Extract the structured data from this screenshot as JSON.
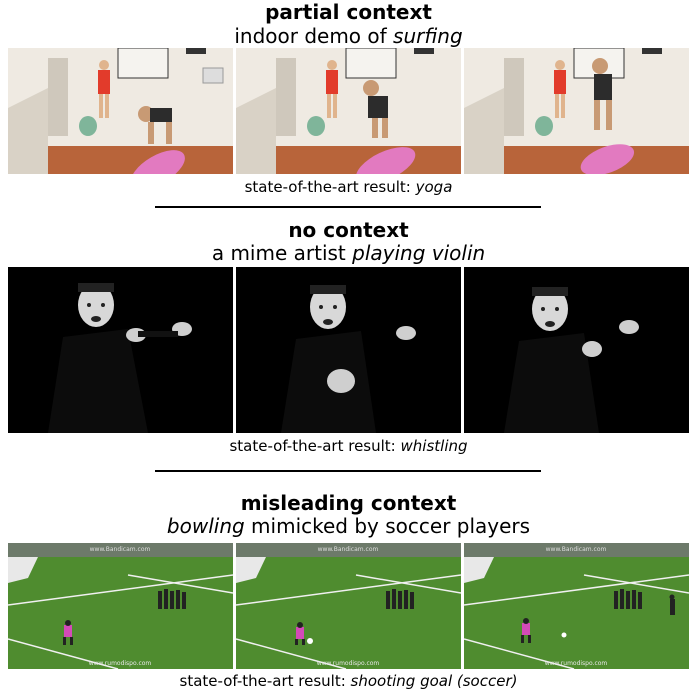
{
  "sections": [
    {
      "title": "partial context",
      "subtitle_plain": "indoor demo of ",
      "subtitle_italic": "surfing",
      "caption_plain": "state-of-the-art result: ",
      "caption_italic": "yoga"
    },
    {
      "title": "no context",
      "subtitle_plain": "a mime artist ",
      "subtitle_italic": "playing violin",
      "caption_plain": "state-of-the-art result: ",
      "caption_italic": "whistling"
    },
    {
      "title": "misleading context",
      "subtitle_italic": "bowling",
      "subtitle_plain": " mimicked by soccer players",
      "caption_plain": "state-of-the-art result: ",
      "caption_italic": "shooting goal (soccer)"
    }
  ],
  "watermarks": {
    "top": "www.Bandicam.com",
    "bottom": "www.rumodispo.com"
  }
}
